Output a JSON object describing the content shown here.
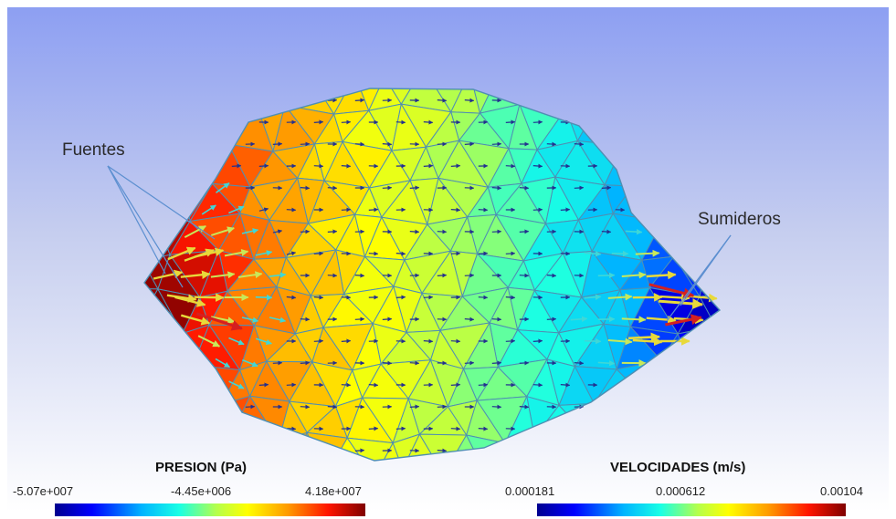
{
  "annotations": {
    "sources_label": "Fuentes",
    "sinks_label": "Sumideros"
  },
  "legend_pressure": {
    "title": "PRESION (Pa)",
    "min": "-5.07e+007",
    "mid": "-4.45e+006",
    "max": "4.18e+007"
  },
  "legend_velocity": {
    "title": "VELOCIDADES (m/s)",
    "min": "0.000181",
    "mid": "0.000612",
    "max": "0.00104"
  },
  "colors": {
    "background_top": "#8d9ff2",
    "background_bottom": "#ffffff",
    "mesh_edge": "#4f8fb3",
    "colormap": [
      "#00008f",
      "#0000ff",
      "#00b4ff",
      "#19ffe5",
      "#b4ff4c",
      "#ffff00",
      "#ff9b00",
      "#ff1500",
      "#800000"
    ]
  }
}
